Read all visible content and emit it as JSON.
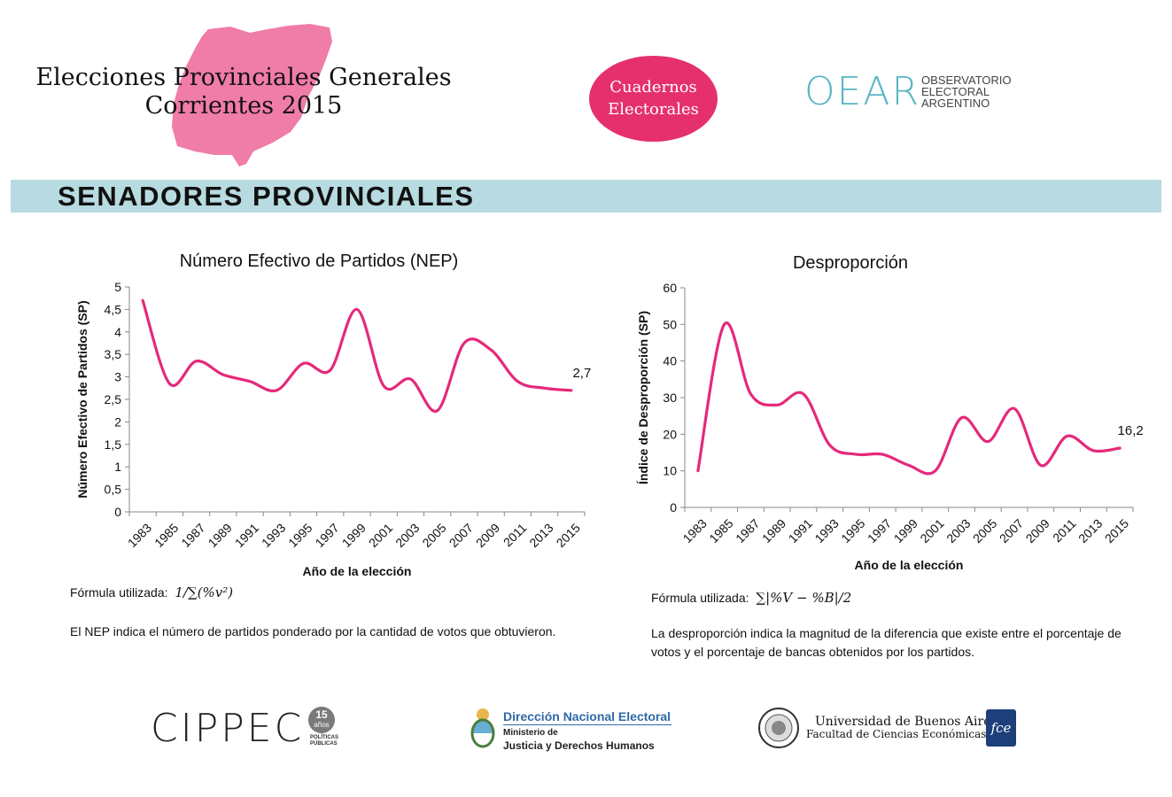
{
  "header": {
    "title_line1": "Elecciones Provinciales Generales",
    "title_line2": "Corrientes 2015",
    "badge_line1": "Cuadernos",
    "badge_line2": "Electorales",
    "oear_mark": "OEAR",
    "oear_line1": "OBSERVATORIO",
    "oear_line2": "ELECTORAL",
    "oear_line3": "ARGENTINO"
  },
  "section": {
    "title": "SENADORES PROVINCIALES"
  },
  "colors": {
    "series": "#e5297a",
    "map": "#f07ca8",
    "badge": "#e5306d",
    "band": "#b7dbe1",
    "oear": "#5bb6c4"
  },
  "chart_data": [
    {
      "type": "line",
      "title": "Número Efectivo de Partidos (NEP)",
      "xlabel": "Año de la elección",
      "ylabel": "Número Efectivo de Partidos (SP)",
      "ylim": [
        0,
        5
      ],
      "yticks": [
        "0",
        "0,5",
        "1",
        "1,5",
        "2",
        "2,5",
        "3",
        "3,5",
        "4",
        "4,5",
        "5"
      ],
      "categories": [
        "1983",
        "1985",
        "1987",
        "1989",
        "1991",
        "1993",
        "1995",
        "1997",
        "1999",
        "2001",
        "2003",
        "2005",
        "2007",
        "2009",
        "2011",
        "2013",
        "2015"
      ],
      "values": [
        4.7,
        2.85,
        3.35,
        3.05,
        2.9,
        2.7,
        3.3,
        3.15,
        4.5,
        2.8,
        2.95,
        2.25,
        3.75,
        3.6,
        2.9,
        2.75,
        2.7
      ],
      "last_label": "2,7"
    },
    {
      "type": "line",
      "title": "Desproporción",
      "xlabel": "Año de la elección",
      "ylabel": "Índice de Desproporción (SP)",
      "ylim": [
        0,
        60
      ],
      "yticks": [
        "0",
        "10",
        "20",
        "30",
        "40",
        "50",
        "60"
      ],
      "categories": [
        "1983",
        "1985",
        "1987",
        "1989",
        "1991",
        "1993",
        "1995",
        "1997",
        "1999",
        "2001",
        "2003",
        "2005",
        "2007",
        "2009",
        "2011",
        "2013",
        "2015"
      ],
      "values": [
        10,
        50,
        31,
        28,
        31,
        17,
        14.5,
        14.5,
        11.5,
        10,
        24.5,
        18,
        27,
        11.5,
        19.5,
        15.5,
        16.2
      ],
      "last_label": "16,2"
    }
  ],
  "notes": {
    "left_formula_label": "Fórmula utilizada:",
    "left_formula": "1/∑(%v²)",
    "left_desc": "El NEP indica el número de partidos ponderado por la cantidad de votos que obtuvieron.",
    "right_formula_label": "Fórmula utilizada:",
    "right_formula": "∑|%V − %B|/2",
    "right_desc": "La desproporción indica la magnitud de la diferencia que existe entre el porcentaje de votos y el porcentaje de bancas obtenidos por los partidos."
  },
  "footer": {
    "cippec": "CIPPEC",
    "cippec_badge": "15",
    "cippec_anos": "años",
    "cippec_sub1": "POLÍTICAS",
    "cippec_sub2": "PÚBLICAS",
    "dne_title": "Dirección Nacional Electoral",
    "dne_sub1": "Ministerio de",
    "dne_sub2": "Justicia y Derechos Humanos",
    "uba_line1": "Universidad de Buenos Aires",
    "uba_line2": "Facultad de Ciencias Económicas",
    "fce_mark": "fce"
  }
}
